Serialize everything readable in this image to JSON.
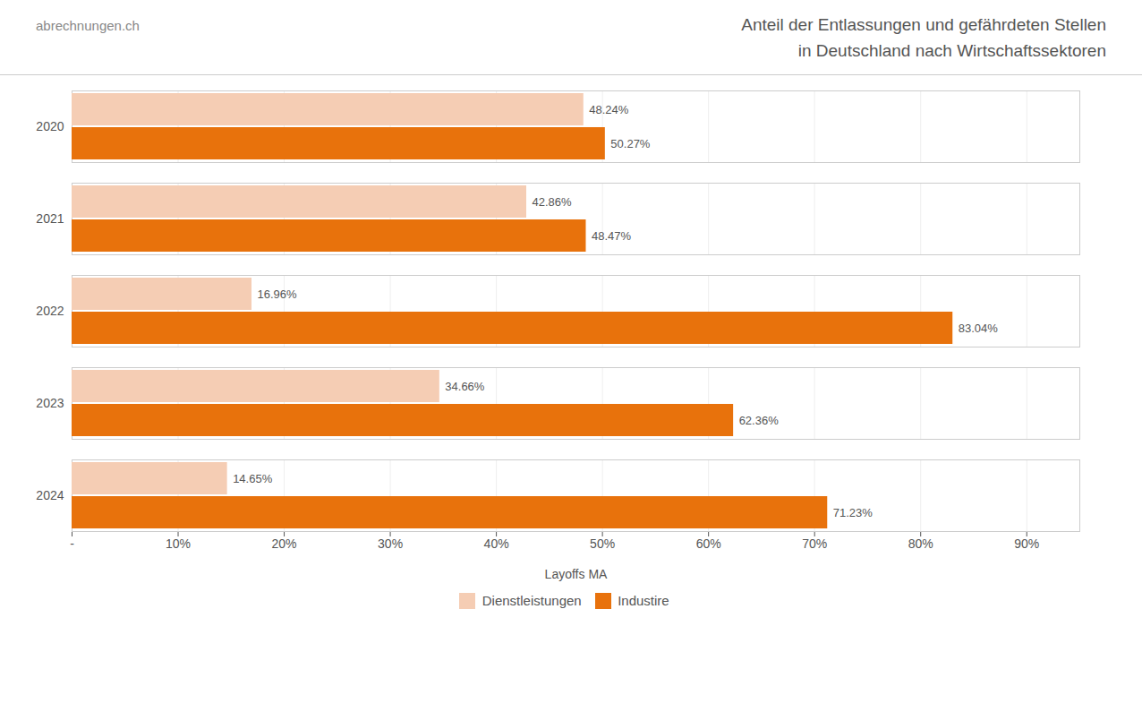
{
  "chart_data": {
    "type": "bar",
    "orientation": "horizontal",
    "title": "Anteil der Entlassungen und gefährdeten Stellen\nin Deutschland nach Wirtschaftssektoren",
    "annotations": [
      {
        "text": "abrechnungen.ch"
      }
    ],
    "xlabel": "Layoffs MA",
    "categories": [
      "2020",
      "2021",
      "2022",
      "2023",
      "2024"
    ],
    "series": [
      {
        "name": "Dienstleistungen",
        "color": "#f5cdb4",
        "values": [
          48.24,
          42.86,
          16.96,
          34.66,
          14.65
        ],
        "value_labels": [
          "48.24%",
          "42.86%",
          "16.96%",
          "34.66%",
          "14.65%"
        ]
      },
      {
        "name": "Industire",
        "color": "#e8720c",
        "values": [
          50.27,
          48.47,
          83.04,
          62.36,
          71.23
        ],
        "value_labels": [
          "50.27%",
          "48.47%",
          "83.04%",
          "62.36%",
          "71.23%"
        ]
      }
    ],
    "xlim": [
      0,
      95
    ],
    "xticks": [
      {
        "value": 0,
        "label": "-"
      },
      {
        "value": 10,
        "label": "10%"
      },
      {
        "value": 20,
        "label": "20%"
      },
      {
        "value": 30,
        "label": "30%"
      },
      {
        "value": 40,
        "label": "40%"
      },
      {
        "value": 50,
        "label": "50%"
      },
      {
        "value": 60,
        "label": "60%"
      },
      {
        "value": 70,
        "label": "70%"
      },
      {
        "value": 80,
        "label": "80%"
      },
      {
        "value": 90,
        "label": "90%"
      }
    ],
    "grid": true,
    "data_labels": true,
    "legend": "bottom"
  }
}
